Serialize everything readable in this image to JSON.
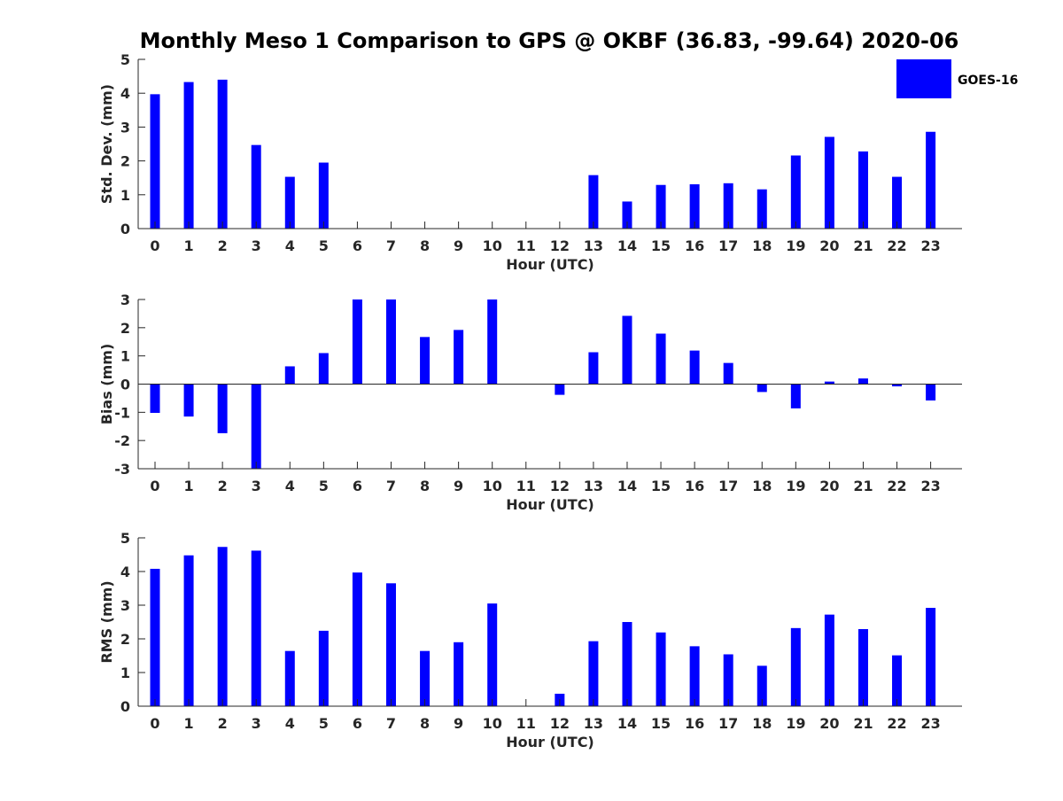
{
  "title": "Monthly Meso 1 Comparison to GPS @ OKBF (36.83, -99.64) 2020-06",
  "legend": {
    "label": "GOES-16",
    "color": "#0000ff"
  },
  "chart_data": [
    {
      "type": "bar",
      "name": "std-dev",
      "xlabel": "Hour (UTC)",
      "ylabel": "Std. Dev. (mm)",
      "categories": [
        "0",
        "1",
        "2",
        "3",
        "4",
        "5",
        "6",
        "7",
        "8",
        "9",
        "10",
        "11",
        "12",
        "13",
        "14",
        "15",
        "16",
        "17",
        "18",
        "19",
        "20",
        "21",
        "22",
        "23"
      ],
      "values": [
        3.97,
        4.33,
        4.4,
        2.47,
        1.53,
        1.95,
        0,
        0,
        0,
        0,
        0,
        0,
        0,
        1.58,
        0.8,
        1.29,
        1.31,
        1.34,
        1.16,
        2.16,
        2.71,
        2.28,
        1.53,
        2.86
      ],
      "ylim": [
        0,
        5
      ],
      "yticks": [
        "0",
        "1",
        "2",
        "3",
        "4",
        "5"
      ],
      "series_name": "GOES-16"
    },
    {
      "type": "bar",
      "name": "bias",
      "xlabel": "Hour (UTC)",
      "ylabel": "Bias (mm)",
      "categories": [
        "0",
        "1",
        "2",
        "3",
        "4",
        "5",
        "6",
        "7",
        "8",
        "9",
        "10",
        "11",
        "12",
        "13",
        "14",
        "15",
        "16",
        "17",
        "18",
        "19",
        "20",
        "21",
        "22",
        "23"
      ],
      "values": [
        -1.02,
        -1.15,
        -1.74,
        -3.0,
        0.63,
        1.1,
        3.0,
        3.0,
        1.67,
        1.92,
        3.0,
        0,
        -0.38,
        1.13,
        2.42,
        1.79,
        1.19,
        0.75,
        -0.28,
        -0.86,
        0.09,
        0.2,
        -0.08,
        -0.58
      ],
      "ylim": [
        -3,
        3
      ],
      "yticks": [
        "-3",
        "-2",
        "-1",
        "0",
        "1",
        "2",
        "3"
      ],
      "series_name": "GOES-16"
    },
    {
      "type": "bar",
      "name": "rms",
      "xlabel": "Hour (UTC)",
      "ylabel": "RMS (mm)",
      "categories": [
        "0",
        "1",
        "2",
        "3",
        "4",
        "5",
        "6",
        "7",
        "8",
        "9",
        "10",
        "11",
        "12",
        "13",
        "14",
        "15",
        "16",
        "17",
        "18",
        "19",
        "20",
        "21",
        "22",
        "23"
      ],
      "values": [
        4.08,
        4.48,
        4.73,
        4.62,
        1.64,
        2.24,
        3.97,
        3.65,
        1.64,
        1.9,
        3.05,
        0,
        0.37,
        1.93,
        2.5,
        2.19,
        1.78,
        1.54,
        1.2,
        2.32,
        2.72,
        2.29,
        1.51,
        2.92
      ],
      "ylim": [
        0,
        5
      ],
      "yticks": [
        "0",
        "1",
        "2",
        "3",
        "4",
        "5"
      ],
      "series_name": "GOES-16"
    }
  ]
}
